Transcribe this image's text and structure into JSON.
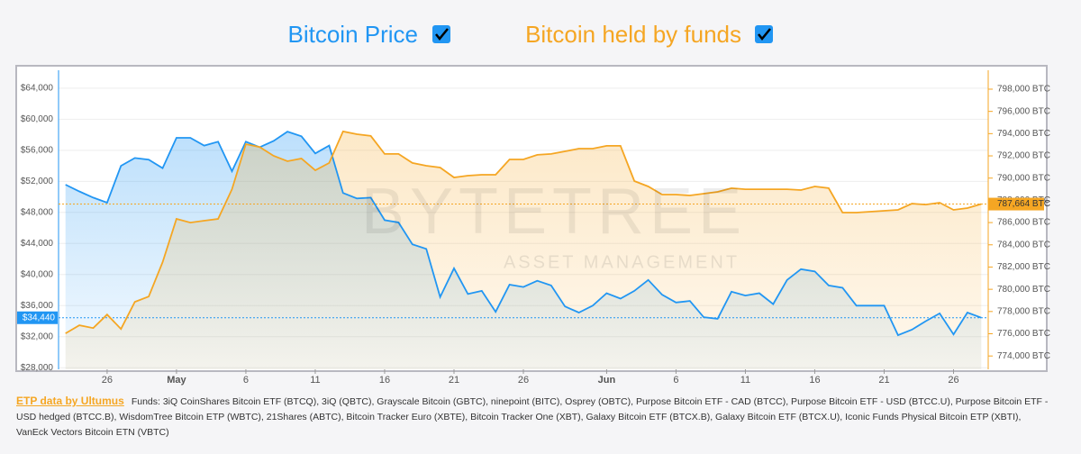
{
  "chart_data": {
    "type": "line",
    "legend": [
      {
        "name": "Bitcoin Price",
        "color": "#2196f3"
      },
      {
        "name": "Bitcoin held by funds",
        "color": "#f5a623"
      }
    ],
    "watermark": {
      "title": "BYTETREE",
      "subtitle": "ASSET MANAGEMENT"
    },
    "categories": [
      null,
      null,
      null,
      "26",
      null,
      null,
      null,
      null,
      "May",
      null,
      null,
      null,
      null,
      "6",
      null,
      null,
      null,
      null,
      "11",
      null,
      null,
      null,
      null,
      "16",
      null,
      null,
      null,
      null,
      "21",
      null,
      null,
      null,
      null,
      "26",
      null,
      null,
      null,
      null,
      null,
      "Jun",
      null,
      null,
      null,
      null,
      "6",
      null,
      null,
      null,
      null,
      "11",
      null,
      null,
      null,
      null,
      "16",
      null,
      null,
      null,
      null,
      "21",
      null,
      null,
      null,
      null,
      "26",
      null,
      null
    ],
    "series": [
      {
        "name": "Bitcoin Price",
        "color": "#2196f3",
        "axis": "y",
        "values": [
          51570,
          50700,
          49900,
          49250,
          54000,
          55000,
          54800,
          53700,
          57600,
          57600,
          56600,
          57100,
          53300,
          57100,
          56400,
          57200,
          58400,
          57800,
          55600,
          56600,
          50500,
          49800,
          49900,
          47000,
          46700,
          43900,
          43300,
          37100,
          40800,
          37500,
          37900,
          35200,
          38700,
          38400,
          39200,
          38600,
          35900,
          35100,
          36000,
          37600,
          36900,
          37900,
          39300,
          37400,
          36400,
          36600,
          34500,
          34300,
          37800,
          37300,
          37600,
          36200,
          39300,
          40700,
          40400,
          38600,
          38300,
          36000,
          36000,
          36000,
          32200,
          32900,
          34000,
          35000,
          32300,
          35100,
          34440
        ],
        "value_labels": [
          null,
          null,
          null,
          null,
          null,
          null,
          null,
          null,
          null,
          null,
          null,
          null,
          null,
          null,
          null,
          null,
          null,
          null,
          null,
          null,
          null,
          null,
          null,
          null,
          null,
          null,
          null,
          null,
          null,
          null,
          null,
          null,
          null,
          null,
          null,
          null,
          null,
          null,
          null,
          null,
          null,
          null,
          null,
          null,
          null,
          null,
          null,
          null,
          null,
          null,
          null,
          null,
          null,
          null,
          null,
          null,
          null,
          null,
          null,
          null,
          null,
          null,
          null,
          null,
          null,
          null,
          "$34,440"
        ]
      },
      {
        "name": "Bitcoin held by funds",
        "color": "#f5a623",
        "axis": "y2",
        "values": [
          776030,
          776760,
          776510,
          777730,
          776430,
          778870,
          779350,
          782430,
          786330,
          786000,
          786170,
          786330,
          789000,
          793060,
          792800,
          792000,
          791520,
          791760,
          790700,
          791360,
          794200,
          793950,
          793790,
          792170,
          792170,
          791360,
          791110,
          790950,
          790060,
          790220,
          790300,
          790300,
          791680,
          791680,
          792090,
          792170,
          792410,
          792650,
          792650,
          792900,
          792900,
          789730,
          789250,
          788520,
          788520,
          788440,
          788600,
          788760,
          789090,
          789000,
          789000,
          789000,
          789000,
          788920,
          789250,
          789090,
          786900,
          786900,
          786980,
          787060,
          787140,
          787700,
          787620,
          787790,
          787140,
          787300,
          787664
        ],
        "value_labels": [
          null,
          null,
          null,
          null,
          null,
          null,
          null,
          null,
          null,
          null,
          null,
          null,
          null,
          null,
          null,
          null,
          null,
          null,
          null,
          null,
          null,
          null,
          null,
          null,
          null,
          null,
          null,
          null,
          null,
          null,
          null,
          null,
          null,
          null,
          null,
          null,
          null,
          null,
          null,
          null,
          null,
          null,
          null,
          null,
          null,
          null,
          null,
          null,
          null,
          null,
          null,
          null,
          null,
          null,
          null,
          null,
          null,
          null,
          null,
          null,
          null,
          null,
          null,
          null,
          null,
          null,
          "787,664 BTC"
        ]
      }
    ],
    "ylim": [
      27800,
      66300
    ],
    "yticks": [
      {
        "value": 28000,
        "label": "$28,000"
      },
      {
        "value": 32000,
        "label": "$32,000"
      },
      {
        "value": 36000,
        "label": "$36,000"
      },
      {
        "value": 40000,
        "label": "$40,000"
      },
      {
        "value": 44000,
        "label": "$44,000"
      },
      {
        "value": 48000,
        "label": "$48,000"
      },
      {
        "value": 52000,
        "label": "$52,000"
      },
      {
        "value": 56000,
        "label": "$56,000"
      },
      {
        "value": 60000,
        "label": "$60,000"
      },
      {
        "value": 64000,
        "label": "$64,000"
      }
    ],
    "y2lim": [
      772800,
      799700
    ],
    "y2ticks": [
      {
        "value": 774000,
        "label": "774,000 BTC"
      },
      {
        "value": 776000,
        "label": "776,000 BTC"
      },
      {
        "value": 778000,
        "label": "778,000 BTC"
      },
      {
        "value": 780000,
        "label": "780,000 BTC"
      },
      {
        "value": 782000,
        "label": "782,000 BTC"
      },
      {
        "value": 784000,
        "label": "784,000 BTC"
      },
      {
        "value": 786000,
        "label": "786,000 BTC"
      },
      {
        "value": 788000,
        "label": "788,000 BTC"
      },
      {
        "value": 790000,
        "label": "790,000 BTC"
      },
      {
        "value": 792000,
        "label": "792,000 BTC"
      },
      {
        "value": 794000,
        "label": "794,000 BTC"
      },
      {
        "value": 796000,
        "label": "796,000 BTC"
      },
      {
        "value": 798000,
        "label": "798,000 BTC"
      }
    ],
    "grid": true,
    "footer": {
      "link": "ETP data by Ultumus",
      "text": "Funds: 3iQ CoinShares Bitcoin ETF (BTCQ), 3iQ (QBTC), Grayscale Bitcoin (GBTC), ninepoint (BITC), Osprey (OBTC), Purpose Bitcoin ETF - CAD (BTCC), Purpose Bitcoin ETF - USD (BTCC.U), Purpose Bitcoin ETF - USD hedged (BTCC.B), WisdomTree Bitcoin ETP (WBTC), 21Shares (ABTC), Bitcoin Tracker Euro (XBTE), Bitcoin Tracker One (XBT), Galaxy Bitcoin ETF (BTCX.B), Galaxy Bitcoin ETF (BTCX.U), Iconic Funds Physical Bitcoin ETP (XBTI), VanEck Vectors Bitcoin ETN (VBTC)"
    }
  }
}
